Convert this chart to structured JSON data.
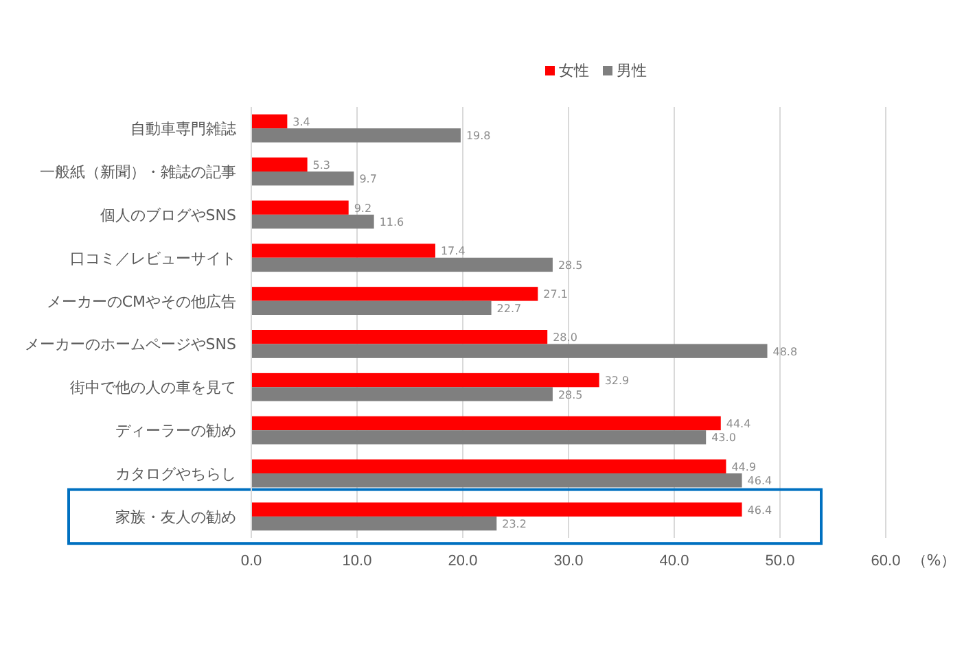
{
  "chart_data": {
    "type": "bar",
    "orientation": "horizontal",
    "xlabel": "（%）",
    "categories": [
      "自動車専門雑誌",
      "一般紙（新聞）・雑誌の記事",
      "個人のブログやSNS",
      "口コミ／レビューサイト",
      "メーカーのCMやその他広告",
      "メーカーのホームページやSNS",
      "街中で他の人の車を見て",
      "ディーラーの勧め",
      "カタログやちらし",
      "家族・友人の勧め"
    ],
    "series": [
      {
        "name": "女性",
        "color": "#ff0000",
        "values": [
          3.4,
          5.3,
          9.2,
          17.4,
          27.1,
          28,
          32.9,
          44.4,
          44.9,
          46.4
        ],
        "value_labels": [
          "3.4",
          "5.3",
          "9.2",
          "17.4",
          "27.1",
          "28.0",
          "32.9",
          "44.4",
          "44.9",
          "46.4"
        ]
      },
      {
        "name": "男性",
        "color": "#7f7f7f",
        "values": [
          19.8,
          9.7,
          11.6,
          28.5,
          22.7,
          48.8,
          28.5,
          43,
          46.4,
          23.2
        ],
        "value_labels": [
          "19.8",
          "9.7",
          "11.6",
          "28.5",
          "22.7",
          "48.8",
          "28.5",
          "43.0",
          "46.4",
          "23.2"
        ]
      }
    ],
    "xlim": [
      0,
      60
    ],
    "xticks": [
      {
        "value": 0,
        "label": "0.0"
      },
      {
        "value": 10,
        "label": "10.0"
      },
      {
        "value": 20,
        "label": "20.0"
      },
      {
        "value": 30,
        "label": "30.0"
      },
      {
        "value": 40,
        "label": "40.0"
      },
      {
        "value": 50,
        "label": "50.0"
      },
      {
        "value": 60,
        "label": "60.0"
      }
    ],
    "grid": "x",
    "legend": "top"
  }
}
